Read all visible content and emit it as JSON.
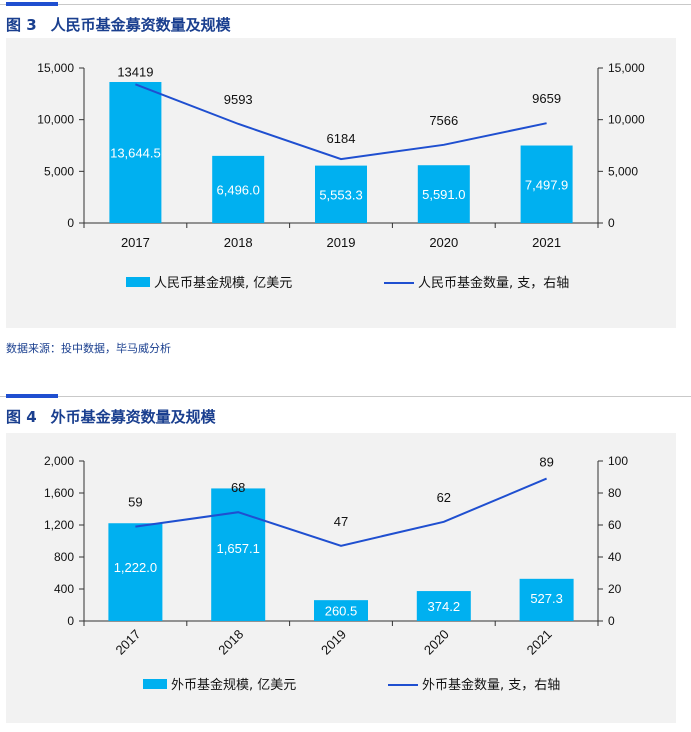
{
  "figures": [
    {
      "number": "图 3",
      "title": "人民币基金募资数量及规模",
      "legend": {
        "bar": "人民币基金规模, 亿美元",
        "line": "人民币基金数量, 支，右轴"
      },
      "left_ticks": [
        "15,000",
        "10,000",
        "5,000",
        "0"
      ],
      "right_ticks": [
        "15,000",
        "10,000",
        "5,000",
        "0"
      ]
    },
    {
      "number": "图 4",
      "title": "外币基金募资数量及规模",
      "legend": {
        "bar": "外币基金规模, 亿美元",
        "line": "外币基金数量, 支，右轴"
      },
      "left_ticks": [
        "2,000",
        "1,600",
        "1,200",
        "800",
        "400",
        "0"
      ],
      "right_ticks": [
        "100",
        "80",
        "60",
        "40",
        "20",
        "0"
      ]
    }
  ],
  "source": "数据来源：投中数据，毕马威分析",
  "colors": {
    "bar": "#00b0f0",
    "line": "#1f4fd0",
    "title": "#1a3f8f",
    "accent": "#1f4fd0",
    "panel": "#f2f2f2"
  },
  "chart_data": [
    {
      "type": "bar",
      "categories": [
        "2017",
        "2018",
        "2019",
        "2020",
        "2021"
      ],
      "series": [
        {
          "name": "人民币基金规模, 亿美元",
          "type": "bar",
          "axis": "left",
          "values": [
            13644.5,
            6496.0,
            5553.3,
            5591.0,
            7497.9
          ],
          "labels": [
            "13,644.5",
            "6,496.0",
            "5,553.3",
            "5,591.0",
            "7,497.9"
          ]
        },
        {
          "name": "人民币基金数量, 支，右轴",
          "type": "line",
          "axis": "right",
          "values": [
            13419,
            9593,
            6184,
            7566,
            9659
          ],
          "labels": [
            "13419",
            "9593",
            "6184",
            "7566",
            "9659"
          ]
        }
      ],
      "ylim": [
        0,
        15000
      ],
      "y2lim": [
        0,
        15000
      ],
      "legend_position": "bottom"
    },
    {
      "type": "bar",
      "categories": [
        "2017",
        "2018",
        "2019",
        "2020",
        "2021"
      ],
      "series": [
        {
          "name": "外币基金规模, 亿美元",
          "type": "bar",
          "axis": "left",
          "values": [
            1222.0,
            1657.1,
            260.5,
            374.2,
            527.3
          ],
          "labels": [
            "1,222.0",
            "1,657.1",
            "260.5",
            "374.2",
            "527.3"
          ]
        },
        {
          "name": "外币基金数量, 支，右轴",
          "type": "line",
          "axis": "right",
          "values": [
            59,
            68,
            47,
            62,
            89
          ],
          "labels": [
            "59",
            "68",
            "47",
            "62",
            "89"
          ]
        }
      ],
      "ylim": [
        0,
        2000
      ],
      "y2lim": [
        0,
        100
      ],
      "legend_position": "bottom"
    }
  ]
}
